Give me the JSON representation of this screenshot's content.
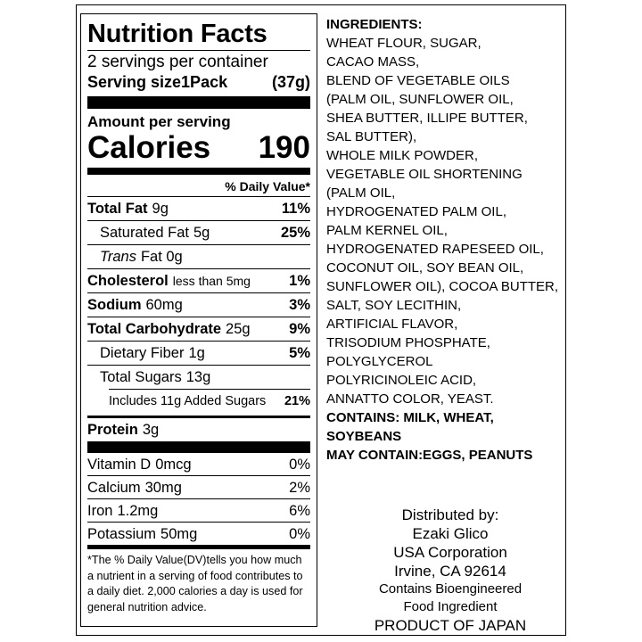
{
  "nutrition": {
    "title": "Nutrition Facts",
    "servings": "2 servings per container",
    "serving_size_label": "Serving size",
    "serving_size": "1Pack",
    "serving_weight": "(37g)",
    "amount_per_serving": "Amount per serving",
    "calories_label": "Calories",
    "calories": "190",
    "dv_header": "% Daily Value*",
    "nutrients": [
      {
        "name": "Total Fat",
        "amount": "9g",
        "dv": "11%"
      },
      {
        "name": "Saturated Fat",
        "amount": "5g",
        "dv": "25%"
      },
      {
        "name": "Trans",
        "amount": "Fat 0g"
      },
      {
        "name": "Cholesterol",
        "amount": "less than 5mg",
        "dv": "1%"
      },
      {
        "name": "Sodium",
        "amount": "60mg",
        "dv": "3%"
      },
      {
        "name": "Total Carbohydrate",
        "amount": "25g",
        "dv": "9%"
      },
      {
        "name": "Dietary Fiber",
        "amount": "1g",
        "dv": "5%"
      },
      {
        "name": "Total Sugars",
        "amount": "13g"
      },
      {
        "name": "Includes 11g Added Sugars",
        "dv": "21%"
      }
    ],
    "protein": {
      "name": "Protein",
      "amount": "3g"
    },
    "vitamins": [
      {
        "name": "Vitamin D",
        "amount": "0mcg",
        "dv": "0%"
      },
      {
        "name": "Calcium",
        "amount": "30mg",
        "dv": "2%"
      },
      {
        "name": "Iron",
        "amount": "1.2mg",
        "dv": "6%"
      },
      {
        "name": "Potassium",
        "amount": "50mg",
        "dv": "0%"
      }
    ],
    "footnote": "*The % Daily Value(DV)tells you how much a nutrient in a serving of food contributes to a daily diet. 2,000 calories a day is used for general nutrition advice."
  },
  "ingredients": {
    "heading": "INGREDIENTS:",
    "lines": [
      "WHEAT FLOUR, SUGAR,",
      "CACAO MASS,",
      "BLEND OF VEGETABLE OILS",
      "(PALM OIL, SUNFLOWER OIL,",
      "SHEA BUTTER, ILLIPE BUTTER,",
      "SAL BUTTER),",
      "WHOLE MILK POWDER,",
      "VEGETABLE OIL SHORTENING",
      "(PALM OIL,",
      "HYDROGENATED PALM OIL,",
      "PALM KERNEL OIL,",
      "HYDROGENATED RAPESEED OIL,",
      "COCONUT OIL, SOY BEAN OIL,",
      "SUNFLOWER OIL), COCOA BUTTER,",
      "SALT, SOY LECITHIN,",
      "ARTIFICIAL FLAVOR,",
      "TRISODIUM PHOSPHATE,",
      "POLYGLYCEROL",
      "POLYRICINOLEIC ACID,",
      "ANNATTO COLOR, YEAST."
    ],
    "contains": [
      "CONTAINS: MILK, WHEAT,",
      "SOYBEANS"
    ],
    "may_contain": "MAY CONTAIN:EGGS, PEANUTS"
  },
  "distributor": [
    "Distributed by:",
    "Ezaki Glico",
    "USA Corporation",
    "Irvine, CA 92614",
    "Contains Bioengineered",
    "Food Ingredient",
    "PRODUCT OF JAPAN"
  ]
}
